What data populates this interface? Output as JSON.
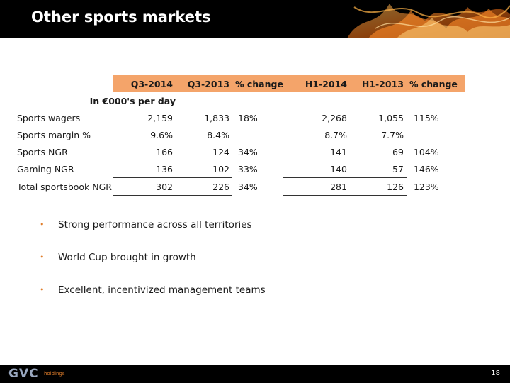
{
  "slide": {
    "title": "Other sports markets",
    "page_number": "18"
  },
  "table": {
    "headers": [
      "Q3-2014",
      "Q3-2013",
      "% change",
      "H1-2014",
      "H1-2013",
      "% change"
    ],
    "units_label": "In €000's per day",
    "rows": [
      {
        "label": "Sports wagers",
        "cells": [
          "2,159",
          "1,833",
          "18%",
          "2,268",
          "1,055",
          "115%"
        ]
      },
      {
        "label": "Sports margin %",
        "cells": [
          "9.6%",
          "8.4%",
          "",
          "8.7%",
          "7.7%",
          ""
        ]
      },
      {
        "label": "Sports NGR",
        "cells": [
          "166",
          "124",
          "34%",
          "141",
          "69",
          "104%"
        ]
      },
      {
        "label": "Gaming NGR",
        "cells": [
          "136",
          "102",
          "33%",
          "140",
          "57",
          "146%"
        ]
      },
      {
        "label": "Total sportsbook NGR",
        "cells": [
          "302",
          "226",
          "34%",
          "281",
          "126",
          "123%"
        ]
      }
    ]
  },
  "bullets": [
    "Strong performance across all territories",
    "World Cup brought in growth",
    "Excellent, incentivized management teams"
  ],
  "logo": {
    "text": "GVC",
    "sub": "holdings"
  },
  "colors": {
    "header_fill": "#000000",
    "table_header_fill": "#f4a46a",
    "accent": "#e07d2a"
  }
}
